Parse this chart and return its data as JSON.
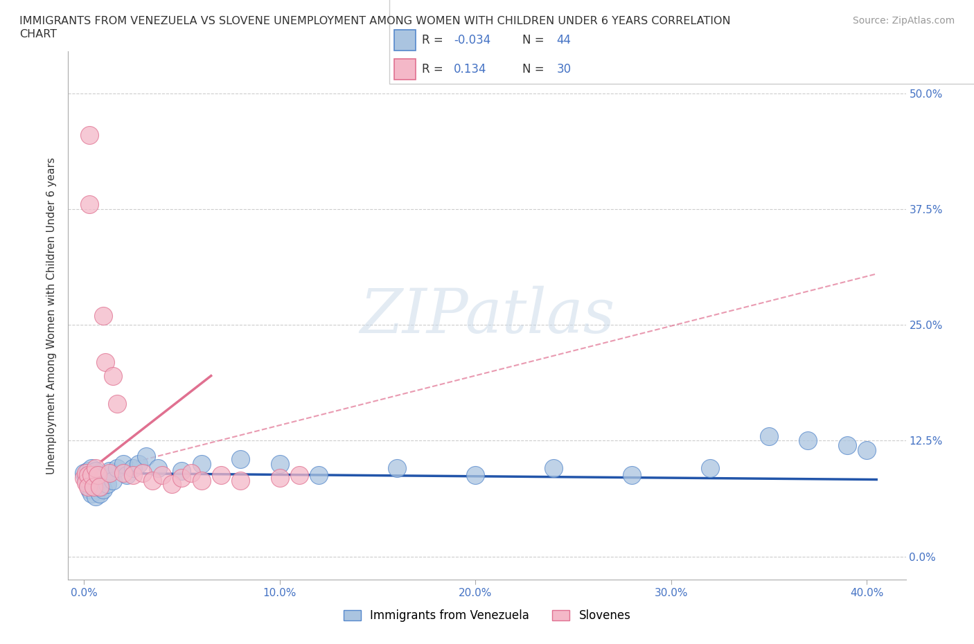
{
  "title_line1": "IMMIGRANTS FROM VENEZUELA VS SLOVENE UNEMPLOYMENT AMONG WOMEN WITH CHILDREN UNDER 6 YEARS CORRELATION",
  "title_line2": "CHART",
  "source_text": "Source: ZipAtlas.com",
  "ylabel": "Unemployment Among Women with Children Under 6 years",
  "background_color": "#ffffff",
  "grid_color": "#cccccc",
  "scatter_blue_fill": "#aac4e0",
  "scatter_blue_edge": "#5588cc",
  "scatter_pink_fill": "#f4b8c8",
  "scatter_pink_edge": "#e07090",
  "line_blue_color": "#2255aa",
  "line_pink_color": "#e07090",
  "watermark_text": "ZIPatlas",
  "r_box_blue_fill": "#aac4e0",
  "r_box_blue_edge": "#5588cc",
  "r_box_pink_fill": "#f4b8c8",
  "r_box_pink_edge": "#e07090",
  "r_val_color": "#4472c4",
  "n_val_color": "#4472c4",
  "tick_color": "#4472c4",
  "xlim": [
    -0.008,
    0.42
  ],
  "ylim": [
    -0.025,
    0.545
  ],
  "x_ticks": [
    0.0,
    0.1,
    0.2,
    0.3,
    0.4
  ],
  "y_ticks": [
    0.0,
    0.125,
    0.25,
    0.375,
    0.5
  ],
  "blue_x": [
    0.0,
    0.001,
    0.002,
    0.002,
    0.003,
    0.003,
    0.004,
    0.004,
    0.005,
    0.005,
    0.006,
    0.006,
    0.007,
    0.007,
    0.008,
    0.008,
    0.009,
    0.01,
    0.01,
    0.011,
    0.012,
    0.013,
    0.015,
    0.017,
    0.02,
    0.022,
    0.025,
    0.028,
    0.032,
    0.038,
    0.05,
    0.06,
    0.08,
    0.1,
    0.12,
    0.16,
    0.2,
    0.24,
    0.28,
    0.32,
    0.35,
    0.37,
    0.39,
    0.4
  ],
  "blue_y": [
    0.09,
    0.085,
    0.092,
    0.078,
    0.088,
    0.072,
    0.095,
    0.068,
    0.088,
    0.075,
    0.092,
    0.065,
    0.085,
    0.078,
    0.068,
    0.082,
    0.075,
    0.085,
    0.072,
    0.088,
    0.078,
    0.092,
    0.082,
    0.095,
    0.1,
    0.088,
    0.095,
    0.1,
    0.108,
    0.095,
    0.092,
    0.1,
    0.105,
    0.1,
    0.088,
    0.095,
    0.088,
    0.095,
    0.088,
    0.095,
    0.13,
    0.125,
    0.12,
    0.115
  ],
  "pink_x": [
    0.0,
    0.001,
    0.001,
    0.002,
    0.002,
    0.003,
    0.003,
    0.004,
    0.005,
    0.006,
    0.007,
    0.008,
    0.01,
    0.011,
    0.013,
    0.015,
    0.017,
    0.02,
    0.025,
    0.03,
    0.035,
    0.04,
    0.045,
    0.05,
    0.055,
    0.06,
    0.07,
    0.08,
    0.1,
    0.11
  ],
  "pink_y": [
    0.085,
    0.09,
    0.08,
    0.088,
    0.075,
    0.455,
    0.38,
    0.088,
    0.075,
    0.095,
    0.088,
    0.075,
    0.26,
    0.21,
    0.09,
    0.195,
    0.165,
    0.09,
    0.088,
    0.09,
    0.082,
    0.088,
    0.078,
    0.085,
    0.09,
    0.082,
    0.088,
    0.082,
    0.085,
    0.088
  ]
}
